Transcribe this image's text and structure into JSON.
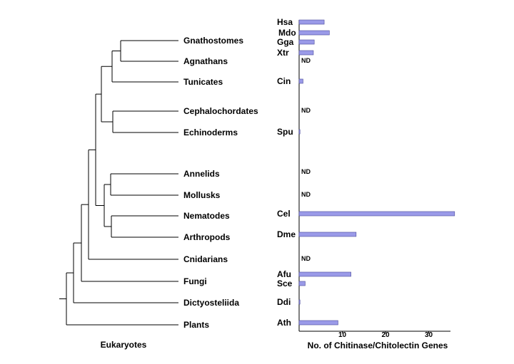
{
  "chart_data": {
    "type": "bar",
    "orientation": "horizontal",
    "title": "",
    "xlabel": "No. of Chitinase/Chitolectin Genes",
    "tree_label": "Eukaryotes",
    "xlim": [
      0,
      35
    ],
    "xticks": [
      10,
      20,
      30
    ],
    "bar_color": "#9a9ae8",
    "bar_edge": "#4a4a9a",
    "nd_label": "ND",
    "taxa": [
      {
        "group": "Gnathostomes",
        "species": [
          {
            "code": "Hsa",
            "value": 5.8
          },
          {
            "code": "Mdo",
            "value": 7.0
          },
          {
            "code": "Gga",
            "value": 3.5
          },
          {
            "code": "Xtr",
            "value": 3.3
          }
        ]
      },
      {
        "group": "Agnathans",
        "species": [
          {
            "code": "",
            "value": null
          }
        ]
      },
      {
        "group": "Tunicates",
        "species": [
          {
            "code": "Cin",
            "value": 0.9
          }
        ]
      },
      {
        "group": "Cephalochordates",
        "species": [
          {
            "code": "",
            "value": null
          }
        ]
      },
      {
        "group": "Echinoderms",
        "species": [
          {
            "code": "Spu",
            "value": 0.2
          }
        ]
      },
      {
        "group": "Annelids",
        "species": [
          {
            "code": "",
            "value": null
          }
        ]
      },
      {
        "group": "Mollusks",
        "species": [
          {
            "code": "",
            "value": null
          }
        ]
      },
      {
        "group": "Nematodes",
        "species": [
          {
            "code": "Cel",
            "value": 36
          }
        ]
      },
      {
        "group": "Arthropods",
        "species": [
          {
            "code": "Dme",
            "value": 13.2
          }
        ]
      },
      {
        "group": "Cnidarians",
        "species": [
          {
            "code": "",
            "value": null
          }
        ]
      },
      {
        "group": "Fungi",
        "species": [
          {
            "code": "Afu",
            "value": 12.0
          },
          {
            "code": "Sce",
            "value": 1.4
          }
        ]
      },
      {
        "group": "Dictyosteliida",
        "species": [
          {
            "code": "Ddi",
            "value": 0.2
          }
        ]
      },
      {
        "group": "Plants",
        "species": [
          {
            "code": "Ath",
            "value": 9.0
          }
        ]
      }
    ]
  }
}
